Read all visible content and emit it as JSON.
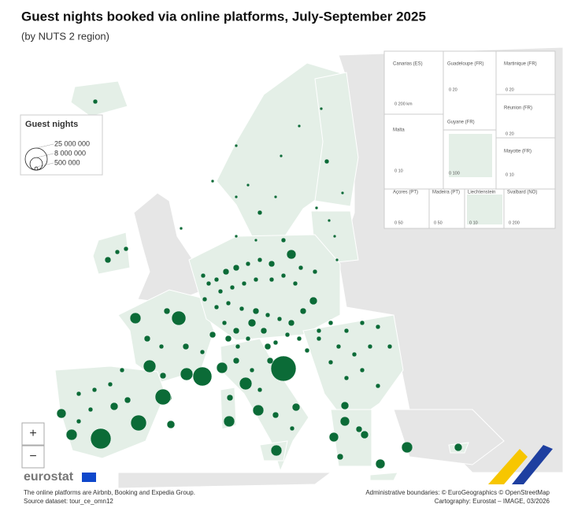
{
  "header": {
    "title": "Guest nights booked via online platforms, July-September 2025",
    "subtitle": "(by NUTS 2 region)"
  },
  "legend": {
    "title": "Guest nights",
    "items": [
      {
        "value": 25000000,
        "label": "25 000 000"
      },
      {
        "value": 8000000,
        "label": "8 000 000"
      },
      {
        "value": 500000,
        "label": "500 000"
      }
    ]
  },
  "insets": [
    {
      "label": "Canarias (ES)",
      "scale": "0     200 km"
    },
    {
      "label": "Guadeloupe (FR)",
      "scale": "0  20"
    },
    {
      "label": "Martinique (FR)",
      "scale": "0  20"
    },
    {
      "label": "Réunion (FR)",
      "scale": "0  20"
    },
    {
      "label": "Malta",
      "scale": "0  10"
    },
    {
      "label": "Guyane (FR)",
      "scale": "0  100"
    },
    {
      "label": "Mayotte (FR)",
      "scale": "0 10"
    },
    {
      "label": "Açores (PT)",
      "scale": "0  50"
    },
    {
      "label": "Madeira (PT)",
      "scale": "0  50"
    },
    {
      "label": "Liechtenstein",
      "scale": "0  10"
    },
    {
      "label": "Svalbard (NO)",
      "scale": "0  200"
    }
  ],
  "controls": {
    "zoom_in": "+",
    "zoom_out": "−"
  },
  "logo": "eurostat",
  "footer": {
    "notes": [
      "The online platforms are Airbnb, Booking and Expedia Group.",
      "Source dataset: tour_ce_omn12"
    ],
    "credits": [
      "Administrative boundaries: © EuroGeographics © OpenStreetMap",
      "Cartography: Eurostat – IMAGE, 03/2026"
    ]
  }
}
